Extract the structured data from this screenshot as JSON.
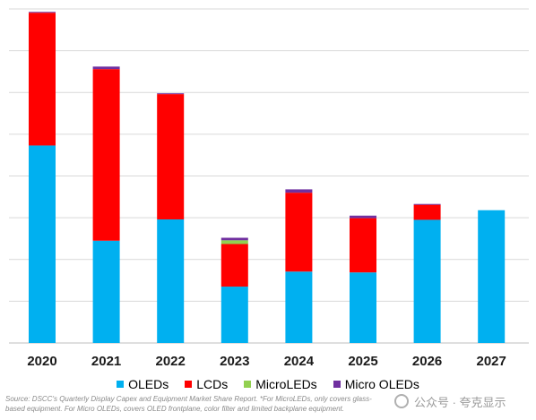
{
  "chart_data": {
    "type": "bar",
    "stacked": true,
    "categories": [
      "2020",
      "2021",
      "2022",
      "2023",
      "2024",
      "2025",
      "2026",
      "2027"
    ],
    "series": [
      {
        "name": "OLEDs",
        "color": "#00b0f0",
        "values": [
          47.3,
          24.5,
          29.6,
          13.5,
          17.1,
          16.9,
          29.5,
          31.8
        ]
      },
      {
        "name": "LCDs",
        "color": "#ff0000",
        "values": [
          31.8,
          41.1,
          30.0,
          10.2,
          18.9,
          13.0,
          3.6,
          0
        ]
      },
      {
        "name": "MicroLEDs",
        "color": "#92d050",
        "values": [
          0,
          0,
          0,
          0.9,
          0,
          0,
          0,
          0
        ]
      },
      {
        "name": "Micro OLEDs",
        "color": "#7030a0",
        "values": [
          0.2,
          0.6,
          0.2,
          0.6,
          0.8,
          0.6,
          0.2,
          0
        ]
      }
    ],
    "ylim": [
      0,
      80
    ],
    "grid": true,
    "legend": "bottom"
  },
  "footnote": "Source: DSCC's Quarterly Display Capex and Equipment Market Share Report. *For MicroLEDs, only covers glass-based equipment. For Micro OLEDs, covers OLED frontplane, color filter and limited backplane equipment.",
  "watermark": "公众号 · 夸克显示"
}
